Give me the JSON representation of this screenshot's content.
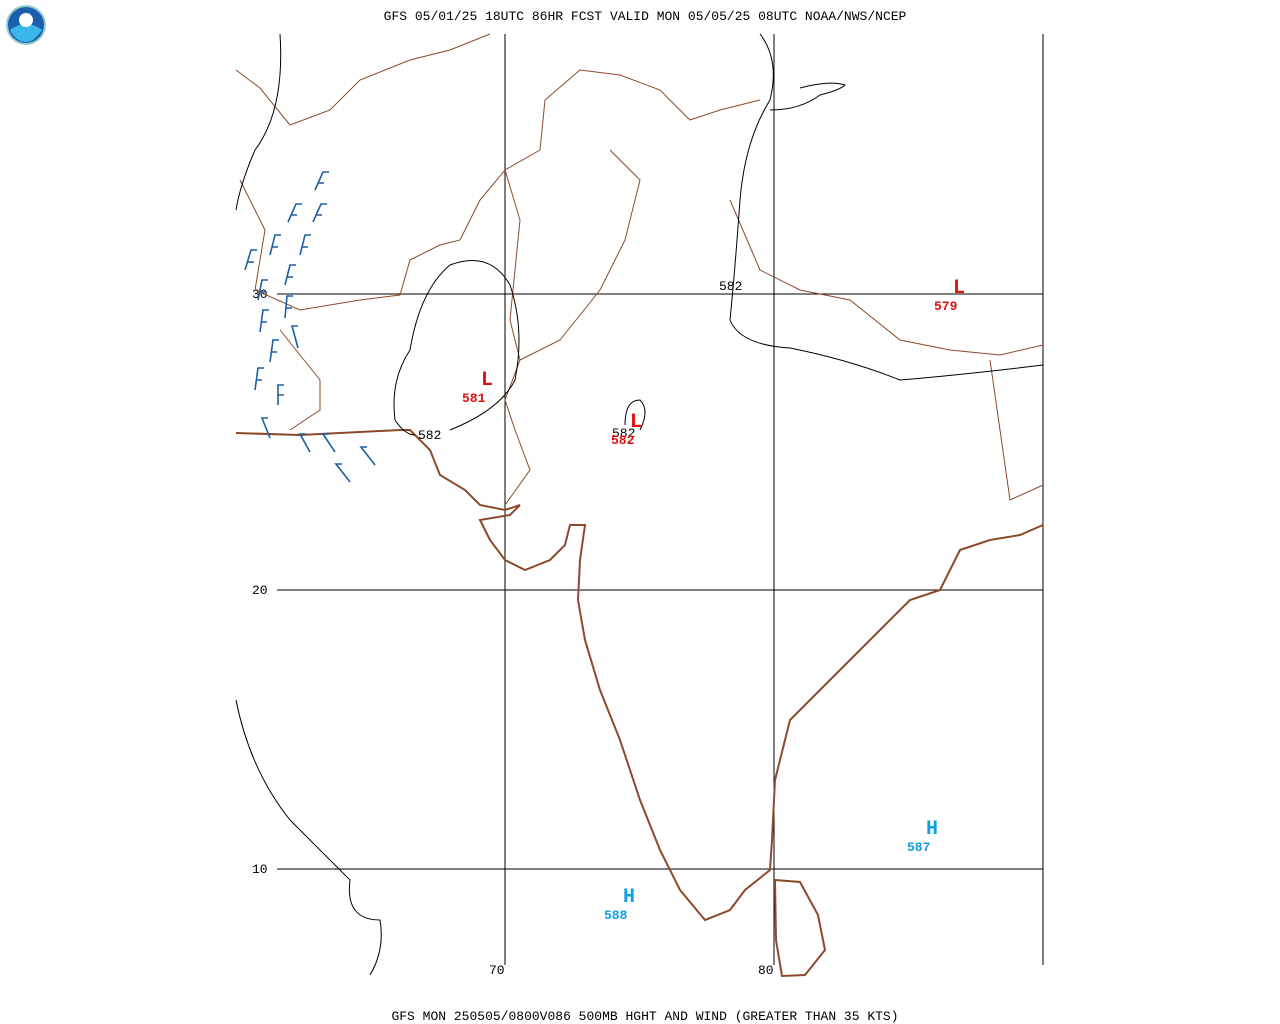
{
  "header": {
    "title": "GFS 05/01/25 18UTC 86HR FCST VALID MON 05/05/25 08UTC NOAA/NWS/NCEP"
  },
  "footer": {
    "caption": "GFS MON 250505/0800V086 500MB HGHT AND WIND (GREATER THAN 35 KTS)"
  },
  "grid": {
    "lat_labels": [
      "30",
      "20",
      "10"
    ],
    "lon_labels": [
      "70",
      "80"
    ]
  },
  "contour_labels": [
    "582",
    "582",
    "582"
  ],
  "centers": [
    {
      "symbol": "L",
      "value": "581"
    },
    {
      "symbol": "L",
      "value": "582"
    },
    {
      "symbol": "L",
      "value": "579"
    },
    {
      "symbol": "H",
      "value": "587"
    },
    {
      "symbol": "H",
      "value": "588"
    }
  ]
}
